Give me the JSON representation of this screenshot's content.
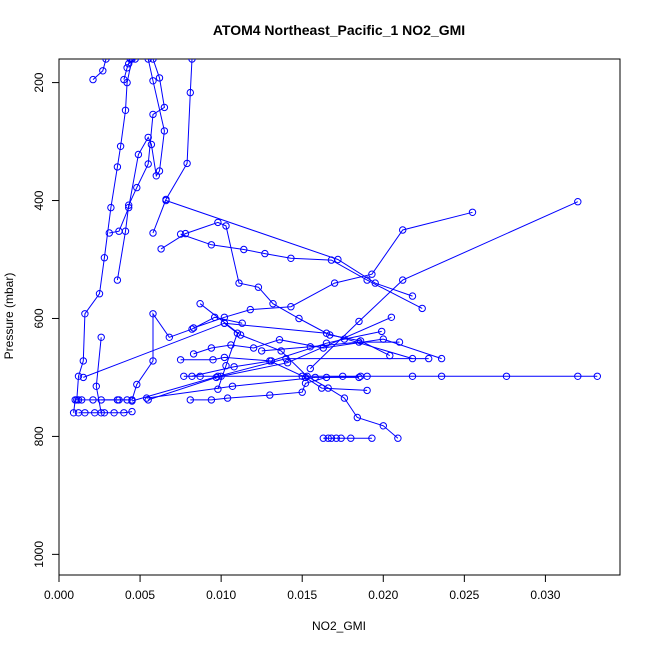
{
  "chart_data": {
    "type": "scatter",
    "title": "ATOM4 Northeast_Pacific_1 NO2_GMI",
    "xlabel": "NO2_GMI",
    "ylabel": "Pressure (mbar)",
    "xlim": [
      0.0,
      0.0346
    ],
    "ylim": [
      1035,
      160
    ],
    "y_reversed": true,
    "grid": false,
    "legend": "none",
    "color": "#0000ff",
    "x_ticks": [
      {
        "value": 0.0,
        "label": "0.000"
      },
      {
        "value": 0.005,
        "label": "0.005"
      },
      {
        "value": 0.01,
        "label": "0.010"
      },
      {
        "value": 0.015,
        "label": "0.015"
      },
      {
        "value": 0.02,
        "label": "0.020"
      },
      {
        "value": 0.025,
        "label": "0.025"
      },
      {
        "value": 0.03,
        "label": "0.030"
      }
    ],
    "y_ticks": [
      {
        "value": 200,
        "label": "200"
      },
      {
        "value": 400,
        "label": "400"
      },
      {
        "value": 600,
        "label": "600"
      },
      {
        "value": 800,
        "label": "800"
      },
      {
        "value": 1000,
        "label": "1000"
      }
    ],
    "series": [
      {
        "points": [
          [
            0.0012,
            760
          ],
          [
            0.0016,
            760
          ],
          [
            0.0022,
            760
          ],
          [
            0.0028,
            760
          ],
          [
            0.0034,
            760
          ],
          [
            0.004,
            760
          ],
          [
            0.0045,
            758
          ]
        ]
      },
      {
        "points": [
          [
            0.0009,
            760
          ],
          [
            0.001,
            738
          ],
          [
            0.0012,
            738
          ],
          [
            0.0014,
            738
          ],
          [
            0.0021,
            738
          ],
          [
            0.0036,
            738
          ],
          [
            0.0042,
            738
          ]
        ]
      },
      {
        "points": [
          [
            0.0011,
            738
          ],
          [
            0.0012,
            698
          ],
          [
            0.0015,
            672
          ],
          [
            0.0016,
            592
          ],
          [
            0.0025,
            558
          ],
          [
            0.0028,
            497
          ],
          [
            0.0032,
            412
          ],
          [
            0.0036,
            343
          ],
          [
            0.0038,
            308
          ],
          [
            0.0041,
            247
          ],
          [
            0.0042,
            200
          ],
          [
            0.0045,
            160
          ]
        ]
      },
      {
        "points": [
          [
            0.0026,
            738
          ],
          [
            0.0037,
            738
          ],
          [
            0.0045,
            738
          ],
          [
            0.0048,
            712
          ],
          [
            0.0058,
            672
          ],
          [
            0.0058,
            592
          ],
          [
            0.0068,
            632
          ],
          [
            0.0082,
            618
          ],
          [
            0.0096,
            598
          ],
          [
            0.0113,
            608
          ]
        ]
      },
      {
        "points": [
          [
            0.0026,
            632
          ],
          [
            0.0023,
            715
          ],
          [
            0.0026,
            760
          ]
        ]
      },
      {
        "points": [
          [
            0.0021,
            195
          ],
          [
            0.0027,
            180
          ],
          [
            0.0029,
            160
          ]
        ]
      },
      {
        "points": [
          [
            0.0031,
            455
          ],
          [
            0.0037,
            452
          ],
          [
            0.0043,
            412
          ],
          [
            0.0049,
            322
          ],
          [
            0.0055,
            293
          ],
          [
            0.0057,
            305
          ],
          [
            0.006,
            358
          ],
          [
            0.0062,
            350
          ],
          [
            0.0065,
            282
          ],
          [
            0.0058,
            197
          ],
          [
            0.0055,
            160
          ]
        ]
      },
      {
        "points": [
          [
            0.0036,
            535
          ],
          [
            0.0041,
            452
          ],
          [
            0.0043,
            408
          ],
          [
            0.0048,
            378
          ],
          [
            0.0055,
            338
          ],
          [
            0.0058,
            254
          ],
          [
            0.0065,
            242
          ],
          [
            0.0062,
            192
          ],
          [
            0.0058,
            160
          ]
        ]
      },
      {
        "points": [
          [
            0.004,
            195
          ],
          [
            0.0042,
            175
          ],
          [
            0.0044,
            160
          ]
        ]
      },
      {
        "points": [
          [
            0.0043,
            168
          ],
          [
            0.0047,
            160
          ]
        ]
      },
      {
        "points": [
          [
            0.0058,
            455
          ],
          [
            0.0066,
            398
          ],
          [
            0.0079,
            337
          ],
          [
            0.0081,
            217
          ],
          [
            0.0082,
            160
          ]
        ]
      },
      {
        "points": [
          [
            0.0063,
            482
          ],
          [
            0.0078,
            456
          ],
          [
            0.0098,
            437
          ],
          [
            0.0103,
            443
          ],
          [
            0.0111,
            540
          ],
          [
            0.0123,
            547
          ],
          [
            0.0132,
            575
          ],
          [
            0.0148,
            600
          ],
          [
            0.0167,
            628
          ],
          [
            0.0186,
            638
          ],
          [
            0.0204,
            663
          ]
        ]
      },
      {
        "points": [
          [
            0.0075,
            457
          ],
          [
            0.0094,
            475
          ],
          [
            0.0114,
            483
          ],
          [
            0.0127,
            490
          ],
          [
            0.0143,
            498
          ],
          [
            0.0168,
            501
          ],
          [
            0.019,
            535
          ],
          [
            0.0224,
            583
          ]
        ]
      },
      {
        "points": [
          [
            0.0066,
            400
          ],
          [
            0.0172,
            500
          ],
          [
            0.0195,
            540
          ],
          [
            0.0218,
            562
          ]
        ]
      },
      {
        "points": [
          [
            0.0083,
            616
          ],
          [
            0.0102,
            598
          ],
          [
            0.0118,
            585
          ],
          [
            0.0143,
            580
          ],
          [
            0.017,
            540
          ],
          [
            0.0193,
            525
          ],
          [
            0.0212,
            450
          ],
          [
            0.0255,
            420
          ]
        ]
      },
      {
        "points": [
          [
            0.0087,
            575
          ],
          [
            0.0112,
            628
          ],
          [
            0.0137,
            655
          ],
          [
            0.0153,
            698
          ],
          [
            0.0166,
            718
          ],
          [
            0.0176,
            735
          ],
          [
            0.0184,
            768
          ],
          [
            0.02,
            782
          ],
          [
            0.0209,
            803
          ]
        ]
      },
      {
        "points": [
          [
            0.0083,
            660
          ],
          [
            0.0094,
            650
          ],
          [
            0.0106,
            645
          ],
          [
            0.012,
            650
          ],
          [
            0.0136,
            636
          ],
          [
            0.0163,
            650
          ],
          [
            0.02,
            635
          ],
          [
            0.0236,
            668
          ]
        ]
      },
      {
        "points": [
          [
            0.0075,
            670
          ],
          [
            0.0095,
            670
          ],
          [
            0.0102,
            666
          ],
          [
            0.013,
            672
          ],
          [
            0.0152,
            700
          ],
          [
            0.0162,
            718
          ],
          [
            0.019,
            722
          ]
        ]
      },
      {
        "points": [
          [
            0.0077,
            698
          ],
          [
            0.0087,
            698
          ],
          [
            0.01,
            698
          ],
          [
            0.015,
            698
          ],
          [
            0.0175,
            698
          ],
          [
            0.019,
            698
          ],
          [
            0.0218,
            698
          ],
          [
            0.0236,
            698
          ],
          [
            0.0276,
            698
          ],
          [
            0.032,
            698
          ],
          [
            0.0332,
            698
          ]
        ]
      },
      {
        "points": [
          [
            0.0082,
            698
          ],
          [
            0.0108,
            682
          ],
          [
            0.0131,
            672
          ],
          [
            0.0165,
            642
          ],
          [
            0.0176,
            635
          ],
          [
            0.0199,
            622
          ]
        ]
      },
      {
        "points": [
          [
            0.0081,
            738
          ],
          [
            0.0094,
            738
          ],
          [
            0.0104,
            735
          ],
          [
            0.013,
            730
          ],
          [
            0.015,
            725
          ],
          [
            0.0152,
            710
          ],
          [
            0.0165,
            700
          ],
          [
            0.0186,
            698
          ]
        ]
      },
      {
        "points": [
          [
            0.0054,
            735
          ],
          [
            0.0107,
            715
          ],
          [
            0.0158,
            700
          ],
          [
            0.0185,
            700
          ]
        ]
      },
      {
        "points": [
          [
            0.0055,
            738
          ],
          [
            0.0097,
            700
          ],
          [
            0.0141,
            675
          ],
          [
            0.0205,
            598
          ]
        ]
      },
      {
        "points": [
          [
            0.0045,
            740
          ],
          [
            0.0098,
            698
          ],
          [
            0.014,
            668
          ],
          [
            0.0228,
            668
          ]
        ]
      },
      {
        "points": [
          [
            0.0015,
            700
          ],
          [
            0.0102,
            608
          ],
          [
            0.0165,
            625
          ],
          [
            0.0218,
            668
          ]
        ]
      },
      {
        "points": [
          [
            0.0102,
            608
          ],
          [
            0.011,
            625
          ],
          [
            0.0103,
            680
          ],
          [
            0.0098,
            720
          ]
        ]
      },
      {
        "points": [
          [
            0.0125,
            655
          ],
          [
            0.0155,
            648
          ],
          [
            0.0185,
            640
          ],
          [
            0.021,
            640
          ]
        ]
      },
      {
        "points": [
          [
            0.0155,
            685
          ],
          [
            0.0185,
            605
          ],
          [
            0.0212,
            535
          ],
          [
            0.032,
            402
          ]
        ]
      },
      {
        "points": [
          [
            0.0163,
            803
          ],
          [
            0.0166,
            803
          ],
          [
            0.0168,
            803
          ],
          [
            0.0171,
            803
          ],
          [
            0.0174,
            803
          ],
          [
            0.018,
            803
          ],
          [
            0.0193,
            803
          ]
        ]
      }
    ]
  }
}
